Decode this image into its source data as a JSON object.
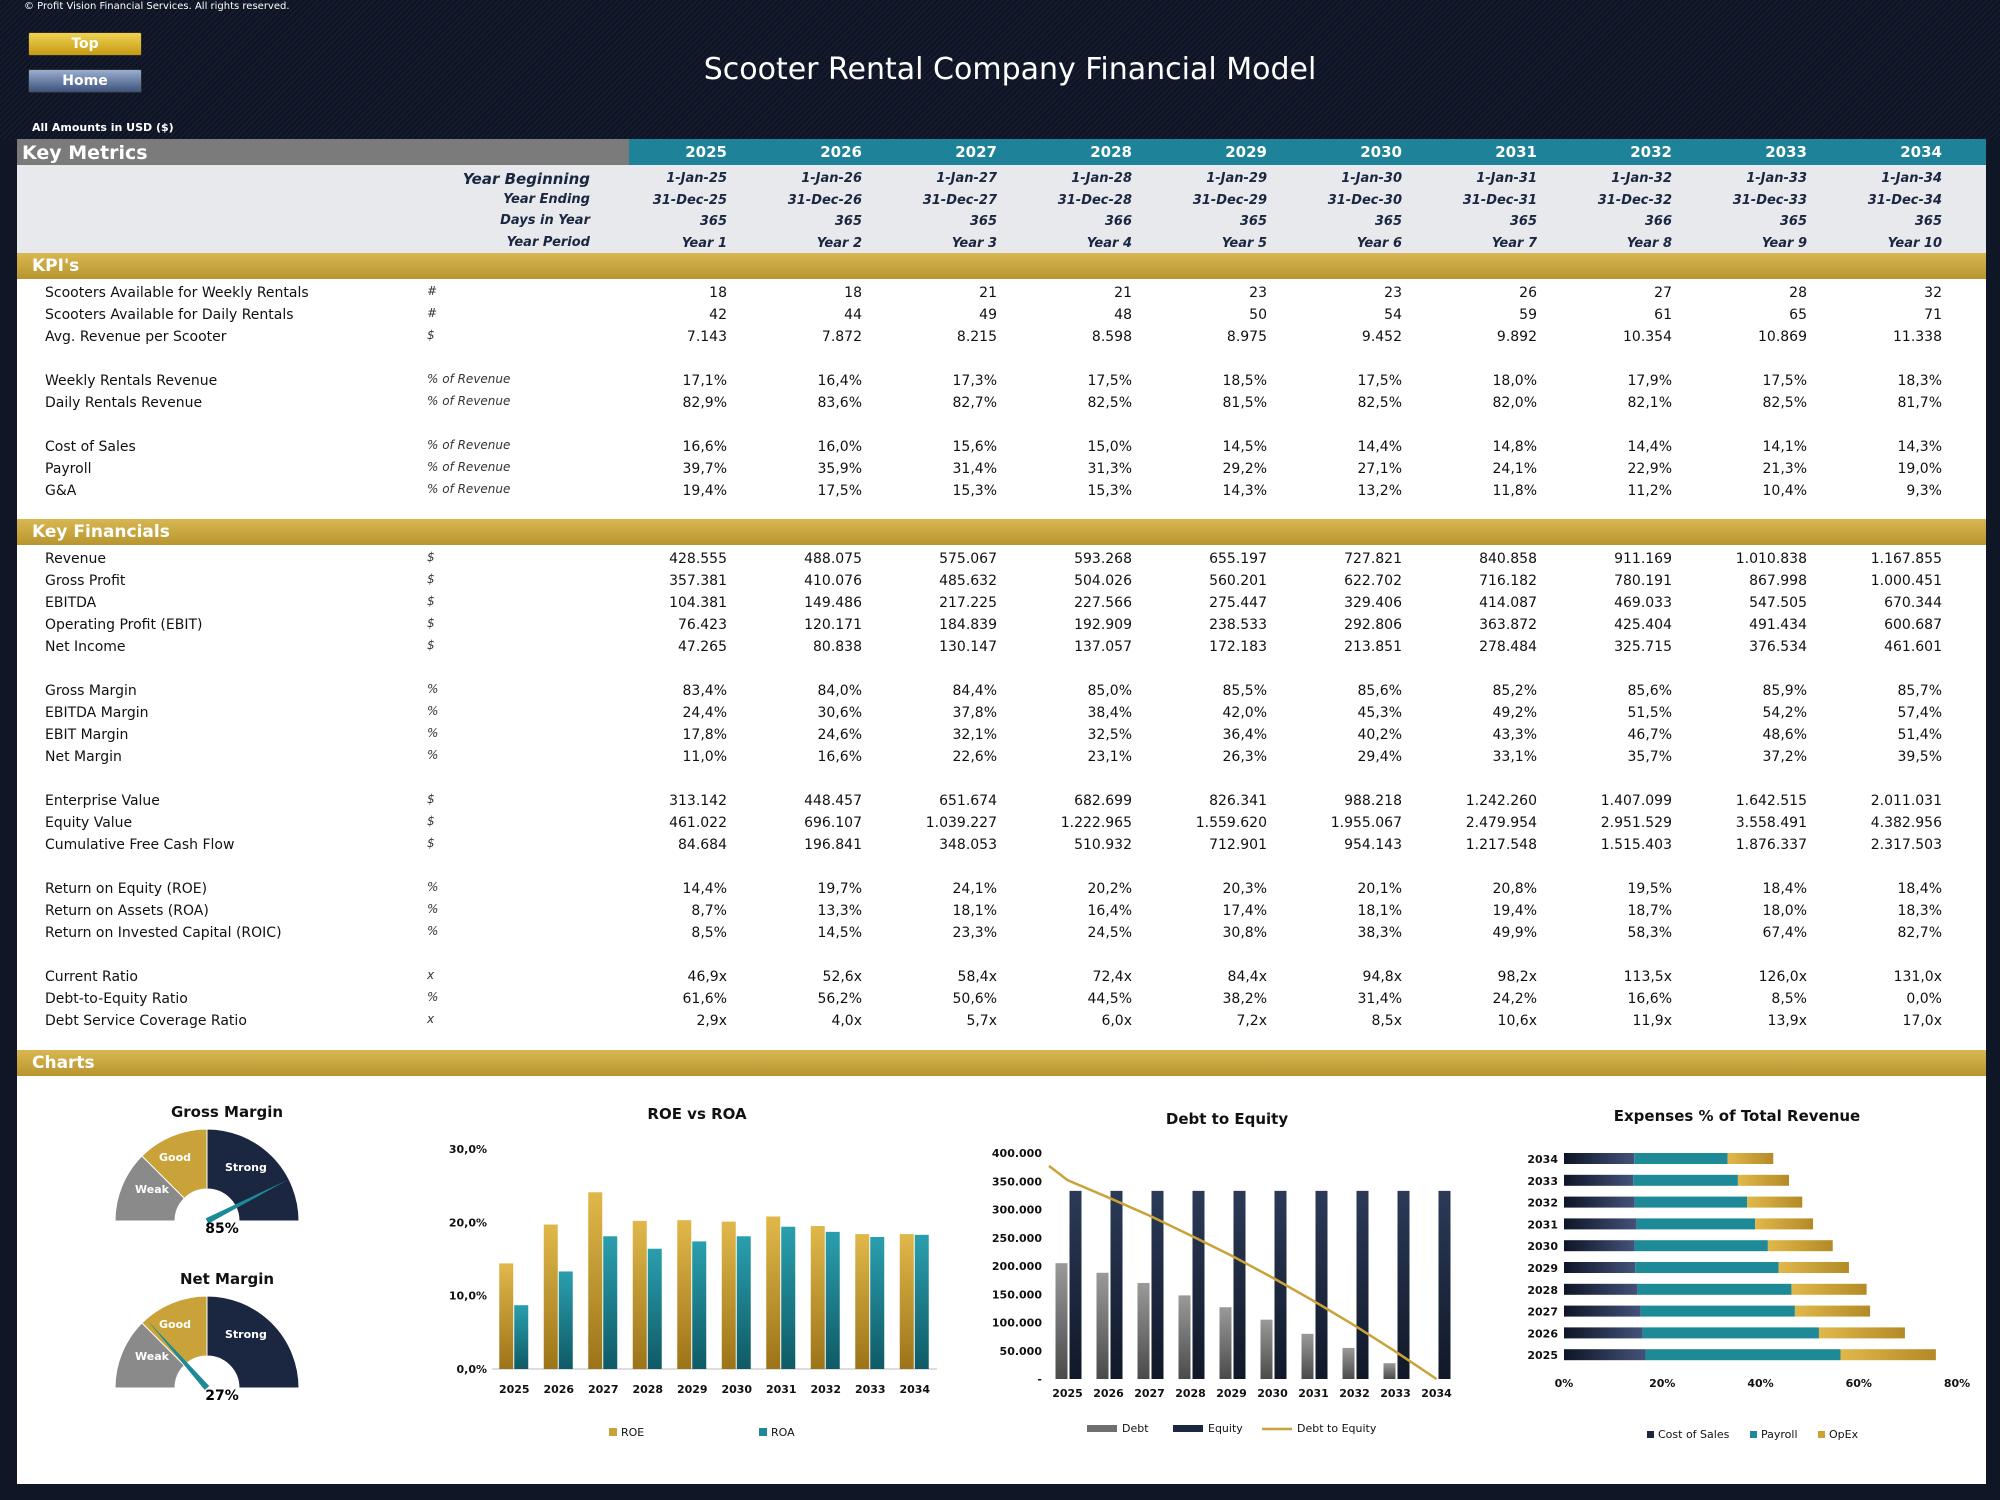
{
  "copyright": "© Profit Vision Financial Services. All rights reserved.",
  "nav": {
    "top": "Top",
    "home": "Home"
  },
  "title": "Scooter Rental Company Financial Model",
  "amounts_note": "All Amounts in  USD ($)",
  "header": {
    "section": "Key Metrics",
    "years": [
      "2025",
      "2026",
      "2027",
      "2028",
      "2029",
      "2030",
      "2031",
      "2032",
      "2033",
      "2034"
    ],
    "rows": [
      {
        "label": "Year Beginning",
        "values": [
          "1-Jan-25",
          "1-Jan-26",
          "1-Jan-27",
          "1-Jan-28",
          "1-Jan-29",
          "1-Jan-30",
          "1-Jan-31",
          "1-Jan-32",
          "1-Jan-33",
          "1-Jan-34"
        ]
      },
      {
        "label": "Year Ending",
        "values": [
          "31-Dec-25",
          "31-Dec-26",
          "31-Dec-27",
          "31-Dec-28",
          "31-Dec-29",
          "31-Dec-30",
          "31-Dec-31",
          "31-Dec-32",
          "31-Dec-33",
          "31-Dec-34"
        ]
      },
      {
        "label": "Days in Year",
        "values": [
          "365",
          "365",
          "365",
          "366",
          "365",
          "365",
          "365",
          "366",
          "365",
          "365"
        ]
      },
      {
        "label": "Year Period",
        "values": [
          "Year 1",
          "Year 2",
          "Year 3",
          "Year 4",
          "Year 5",
          "Year 6",
          "Year 7",
          "Year 8",
          "Year 9",
          "Year 10"
        ]
      }
    ]
  },
  "kpis": {
    "title": "KPI's",
    "rows": [
      {
        "label": "Scooters Available for Weekly Rentals",
        "unit": "#",
        "values": [
          "18",
          "18",
          "21",
          "21",
          "23",
          "23",
          "26",
          "27",
          "28",
          "32"
        ]
      },
      {
        "label": "Scooters Available for Daily Rentals",
        "unit": "#",
        "values": [
          "42",
          "44",
          "49",
          "48",
          "50",
          "54",
          "59",
          "61",
          "65",
          "71"
        ]
      },
      {
        "label": "Avg. Revenue per Scooter",
        "unit": "$",
        "values": [
          "7.143",
          "7.872",
          "8.215",
          "8.598",
          "8.975",
          "9.452",
          "9.892",
          "10.354",
          "10.869",
          "11.338"
        ]
      },
      {
        "label": "Weekly Rentals Revenue",
        "unit": "% of Revenue",
        "values": [
          "17,1%",
          "16,4%",
          "17,3%",
          "17,5%",
          "18,5%",
          "17,5%",
          "18,0%",
          "17,9%",
          "17,5%",
          "18,3%"
        ]
      },
      {
        "label": "Daily Rentals Revenue",
        "unit": "% of Revenue",
        "values": [
          "82,9%",
          "83,6%",
          "82,7%",
          "82,5%",
          "81,5%",
          "82,5%",
          "82,0%",
          "82,1%",
          "82,5%",
          "81,7%"
        ]
      },
      {
        "label": "Cost of Sales",
        "unit": "% of Revenue",
        "values": [
          "16,6%",
          "16,0%",
          "15,6%",
          "15,0%",
          "14,5%",
          "14,4%",
          "14,8%",
          "14,4%",
          "14,1%",
          "14,3%"
        ]
      },
      {
        "label": "Payroll",
        "unit": "% of Revenue",
        "values": [
          "39,7%",
          "35,9%",
          "31,4%",
          "31,3%",
          "29,2%",
          "27,1%",
          "24,1%",
          "22,9%",
          "21,3%",
          "19,0%"
        ]
      },
      {
        "label": "G&A",
        "unit": "% of Revenue",
        "values": [
          "19,4%",
          "17,5%",
          "15,3%",
          "15,3%",
          "14,3%",
          "13,2%",
          "11,8%",
          "11,2%",
          "10,4%",
          "9,3%"
        ]
      }
    ]
  },
  "financials": {
    "title": "Key Financials",
    "rows": [
      {
        "label": "Revenue",
        "unit": "$",
        "values": [
          "428.555",
          "488.075",
          "575.067",
          "593.268",
          "655.197",
          "727.821",
          "840.858",
          "911.169",
          "1.010.838",
          "1.167.855"
        ]
      },
      {
        "label": "Gross Profit",
        "unit": "$",
        "values": [
          "357.381",
          "410.076",
          "485.632",
          "504.026",
          "560.201",
          "622.702",
          "716.182",
          "780.191",
          "867.998",
          "1.000.451"
        ]
      },
      {
        "label": "EBITDA",
        "unit": "$",
        "values": [
          "104.381",
          "149.486",
          "217.225",
          "227.566",
          "275.447",
          "329.406",
          "414.087",
          "469.033",
          "547.505",
          "670.344"
        ]
      },
      {
        "label": "Operating Profit (EBIT)",
        "unit": "$",
        "values": [
          "76.423",
          "120.171",
          "184.839",
          "192.909",
          "238.533",
          "292.806",
          "363.872",
          "425.404",
          "491.434",
          "600.687"
        ]
      },
      {
        "label": "Net Income",
        "unit": "$",
        "values": [
          "47.265",
          "80.838",
          "130.147",
          "137.057",
          "172.183",
          "213.851",
          "278.484",
          "325.715",
          "376.534",
          "461.601"
        ]
      },
      {
        "label": "Gross Margin",
        "unit": "%",
        "values": [
          "83,4%",
          "84,0%",
          "84,4%",
          "85,0%",
          "85,5%",
          "85,6%",
          "85,2%",
          "85,6%",
          "85,9%",
          "85,7%"
        ]
      },
      {
        "label": "EBITDA Margin",
        "unit": "%",
        "values": [
          "24,4%",
          "30,6%",
          "37,8%",
          "38,4%",
          "42,0%",
          "45,3%",
          "49,2%",
          "51,5%",
          "54,2%",
          "57,4%"
        ]
      },
      {
        "label": "EBIT Margin",
        "unit": "%",
        "values": [
          "17,8%",
          "24,6%",
          "32,1%",
          "32,5%",
          "36,4%",
          "40,2%",
          "43,3%",
          "46,7%",
          "48,6%",
          "51,4%"
        ]
      },
      {
        "label": "Net Margin",
        "unit": "%",
        "values": [
          "11,0%",
          "16,6%",
          "22,6%",
          "23,1%",
          "26,3%",
          "29,4%",
          "33,1%",
          "35,7%",
          "37,2%",
          "39,5%"
        ]
      },
      {
        "label": "Enterprise Value",
        "unit": "$",
        "values": [
          "313.142",
          "448.457",
          "651.674",
          "682.699",
          "826.341",
          "988.218",
          "1.242.260",
          "1.407.099",
          "1.642.515",
          "2.011.031"
        ]
      },
      {
        "label": "Equity Value",
        "unit": "$",
        "values": [
          "461.022",
          "696.107",
          "1.039.227",
          "1.222.965",
          "1.559.620",
          "1.955.067",
          "2.479.954",
          "2.951.529",
          "3.558.491",
          "4.382.956"
        ]
      },
      {
        "label": "Cumulative Free Cash Flow",
        "unit": "$",
        "values": [
          "84.684",
          "196.841",
          "348.053",
          "510.932",
          "712.901",
          "954.143",
          "1.217.548",
          "1.515.403",
          "1.876.337",
          "2.317.503"
        ]
      },
      {
        "label": "Return on Equity (ROE)",
        "unit": "%",
        "values": [
          "14,4%",
          "19,7%",
          "24,1%",
          "20,2%",
          "20,3%",
          "20,1%",
          "20,8%",
          "19,5%",
          "18,4%",
          "18,4%"
        ]
      },
      {
        "label": "Return on Assets (ROA)",
        "unit": "%",
        "values": [
          "8,7%",
          "13,3%",
          "18,1%",
          "16,4%",
          "17,4%",
          "18,1%",
          "19,4%",
          "18,7%",
          "18,0%",
          "18,3%"
        ]
      },
      {
        "label": "Return on Invested Capital (ROIC)",
        "unit": "%",
        "values": [
          "8,5%",
          "14,5%",
          "23,3%",
          "24,5%",
          "30,8%",
          "38,3%",
          "49,9%",
          "58,3%",
          "67,4%",
          "82,7%"
        ]
      },
      {
        "label": "Current Ratio",
        "unit": "x",
        "values": [
          "46,9x",
          "52,6x",
          "58,4x",
          "72,4x",
          "84,4x",
          "94,8x",
          "98,2x",
          "113,5x",
          "126,0x",
          "131,0x"
        ]
      },
      {
        "label": "Debt-to-Equity Ratio",
        "unit": "%",
        "values": [
          "61,6%",
          "56,2%",
          "50,6%",
          "44,5%",
          "38,2%",
          "31,4%",
          "24,2%",
          "16,6%",
          "8,5%",
          "0,0%"
        ]
      },
      {
        "label": "Debt Service Coverage Ratio",
        "unit": "x",
        "values": [
          "2,9x",
          "4,0x",
          "5,7x",
          "6,0x",
          "7,2x",
          "8,5x",
          "10,6x",
          "11,9x",
          "13,9x",
          "17,0x"
        ]
      }
    ]
  },
  "charts_title": "Charts",
  "gauges": [
    {
      "title": "Gross Margin",
      "value_label": "85%",
      "value": 0.85,
      "zones": [
        "Weak",
        "Good",
        "Strong"
      ]
    },
    {
      "title": "Net Margin",
      "value_label": "27%",
      "value": 0.27,
      "zones": [
        "Weak",
        "Good",
        "Strong"
      ]
    }
  ],
  "colors": {
    "gold": "#c9a33a",
    "teal": "#1e8a98",
    "navy": "#1b2740",
    "gray": "#7f7f7f",
    "header_teal": "#1e8399"
  },
  "chart_data": [
    {
      "type": "bar",
      "title": "ROE vs ROA",
      "categories": [
        "2025",
        "2026",
        "2027",
        "2028",
        "2029",
        "2030",
        "2031",
        "2032",
        "2033",
        "2034"
      ],
      "series": [
        {
          "name": "ROE",
          "values": [
            14.4,
            19.7,
            24.1,
            20.2,
            20.3,
            20.1,
            20.8,
            19.5,
            18.4,
            18.4
          ]
        },
        {
          "name": "ROA",
          "values": [
            8.7,
            13.3,
            18.1,
            16.4,
            17.4,
            18.1,
            19.4,
            18.7,
            18.0,
            18.3
          ]
        }
      ],
      "ylim": [
        0,
        30
      ],
      "yticks": [
        "0,0%",
        "10,0%",
        "20,0%",
        "30,0%"
      ]
    },
    {
      "type": "bar",
      "title": "Debt to Equity",
      "categories": [
        "2025",
        "2026",
        "2027",
        "2028",
        "2029",
        "2030",
        "2031",
        "2032",
        "2033",
        "2034"
      ],
      "series": [
        {
          "name": "Debt",
          "values": [
            205000,
            188000,
            170000,
            148000,
            127000,
            105000,
            80000,
            55000,
            28000,
            0
          ]
        },
        {
          "name": "Equity",
          "values": [
            333000,
            333000,
            333000,
            333000,
            333000,
            333000,
            333000,
            333000,
            333000,
            333000
          ]
        },
        {
          "name": "Debt to Equity",
          "values": [
            61.6,
            56.2,
            50.6,
            44.5,
            38.2,
            31.4,
            24.2,
            16.6,
            8.5,
            0.0
          ]
        }
      ],
      "ylim": [
        0,
        400000
      ],
      "yticks": [
        "-",
        "50.000",
        "100.000",
        "150.000",
        "200.000",
        "250.000",
        "300.000",
        "350.000",
        "400.000"
      ]
    },
    {
      "type": "bar",
      "title": "Expenses % of Total Revenue",
      "categories": [
        "2034",
        "2033",
        "2032",
        "2031",
        "2030",
        "2029",
        "2028",
        "2027",
        "2026",
        "2025"
      ],
      "series": [
        {
          "name": "Cost of Sales",
          "values": [
            14.3,
            14.1,
            14.4,
            14.8,
            14.4,
            14.5,
            15.0,
            15.6,
            16.0,
            16.6
          ]
        },
        {
          "name": "Payroll",
          "values": [
            19.0,
            21.3,
            22.9,
            24.1,
            27.1,
            29.2,
            31.3,
            31.4,
            35.9,
            39.7
          ]
        },
        {
          "name": "OpEx",
          "values": [
            9.3,
            10.4,
            11.2,
            11.8,
            13.2,
            14.3,
            15.3,
            15.3,
            17.5,
            19.4
          ]
        }
      ],
      "xlim": [
        0,
        80
      ],
      "xticks": [
        "0%",
        "20%",
        "40%",
        "60%",
        "80%"
      ]
    }
  ]
}
